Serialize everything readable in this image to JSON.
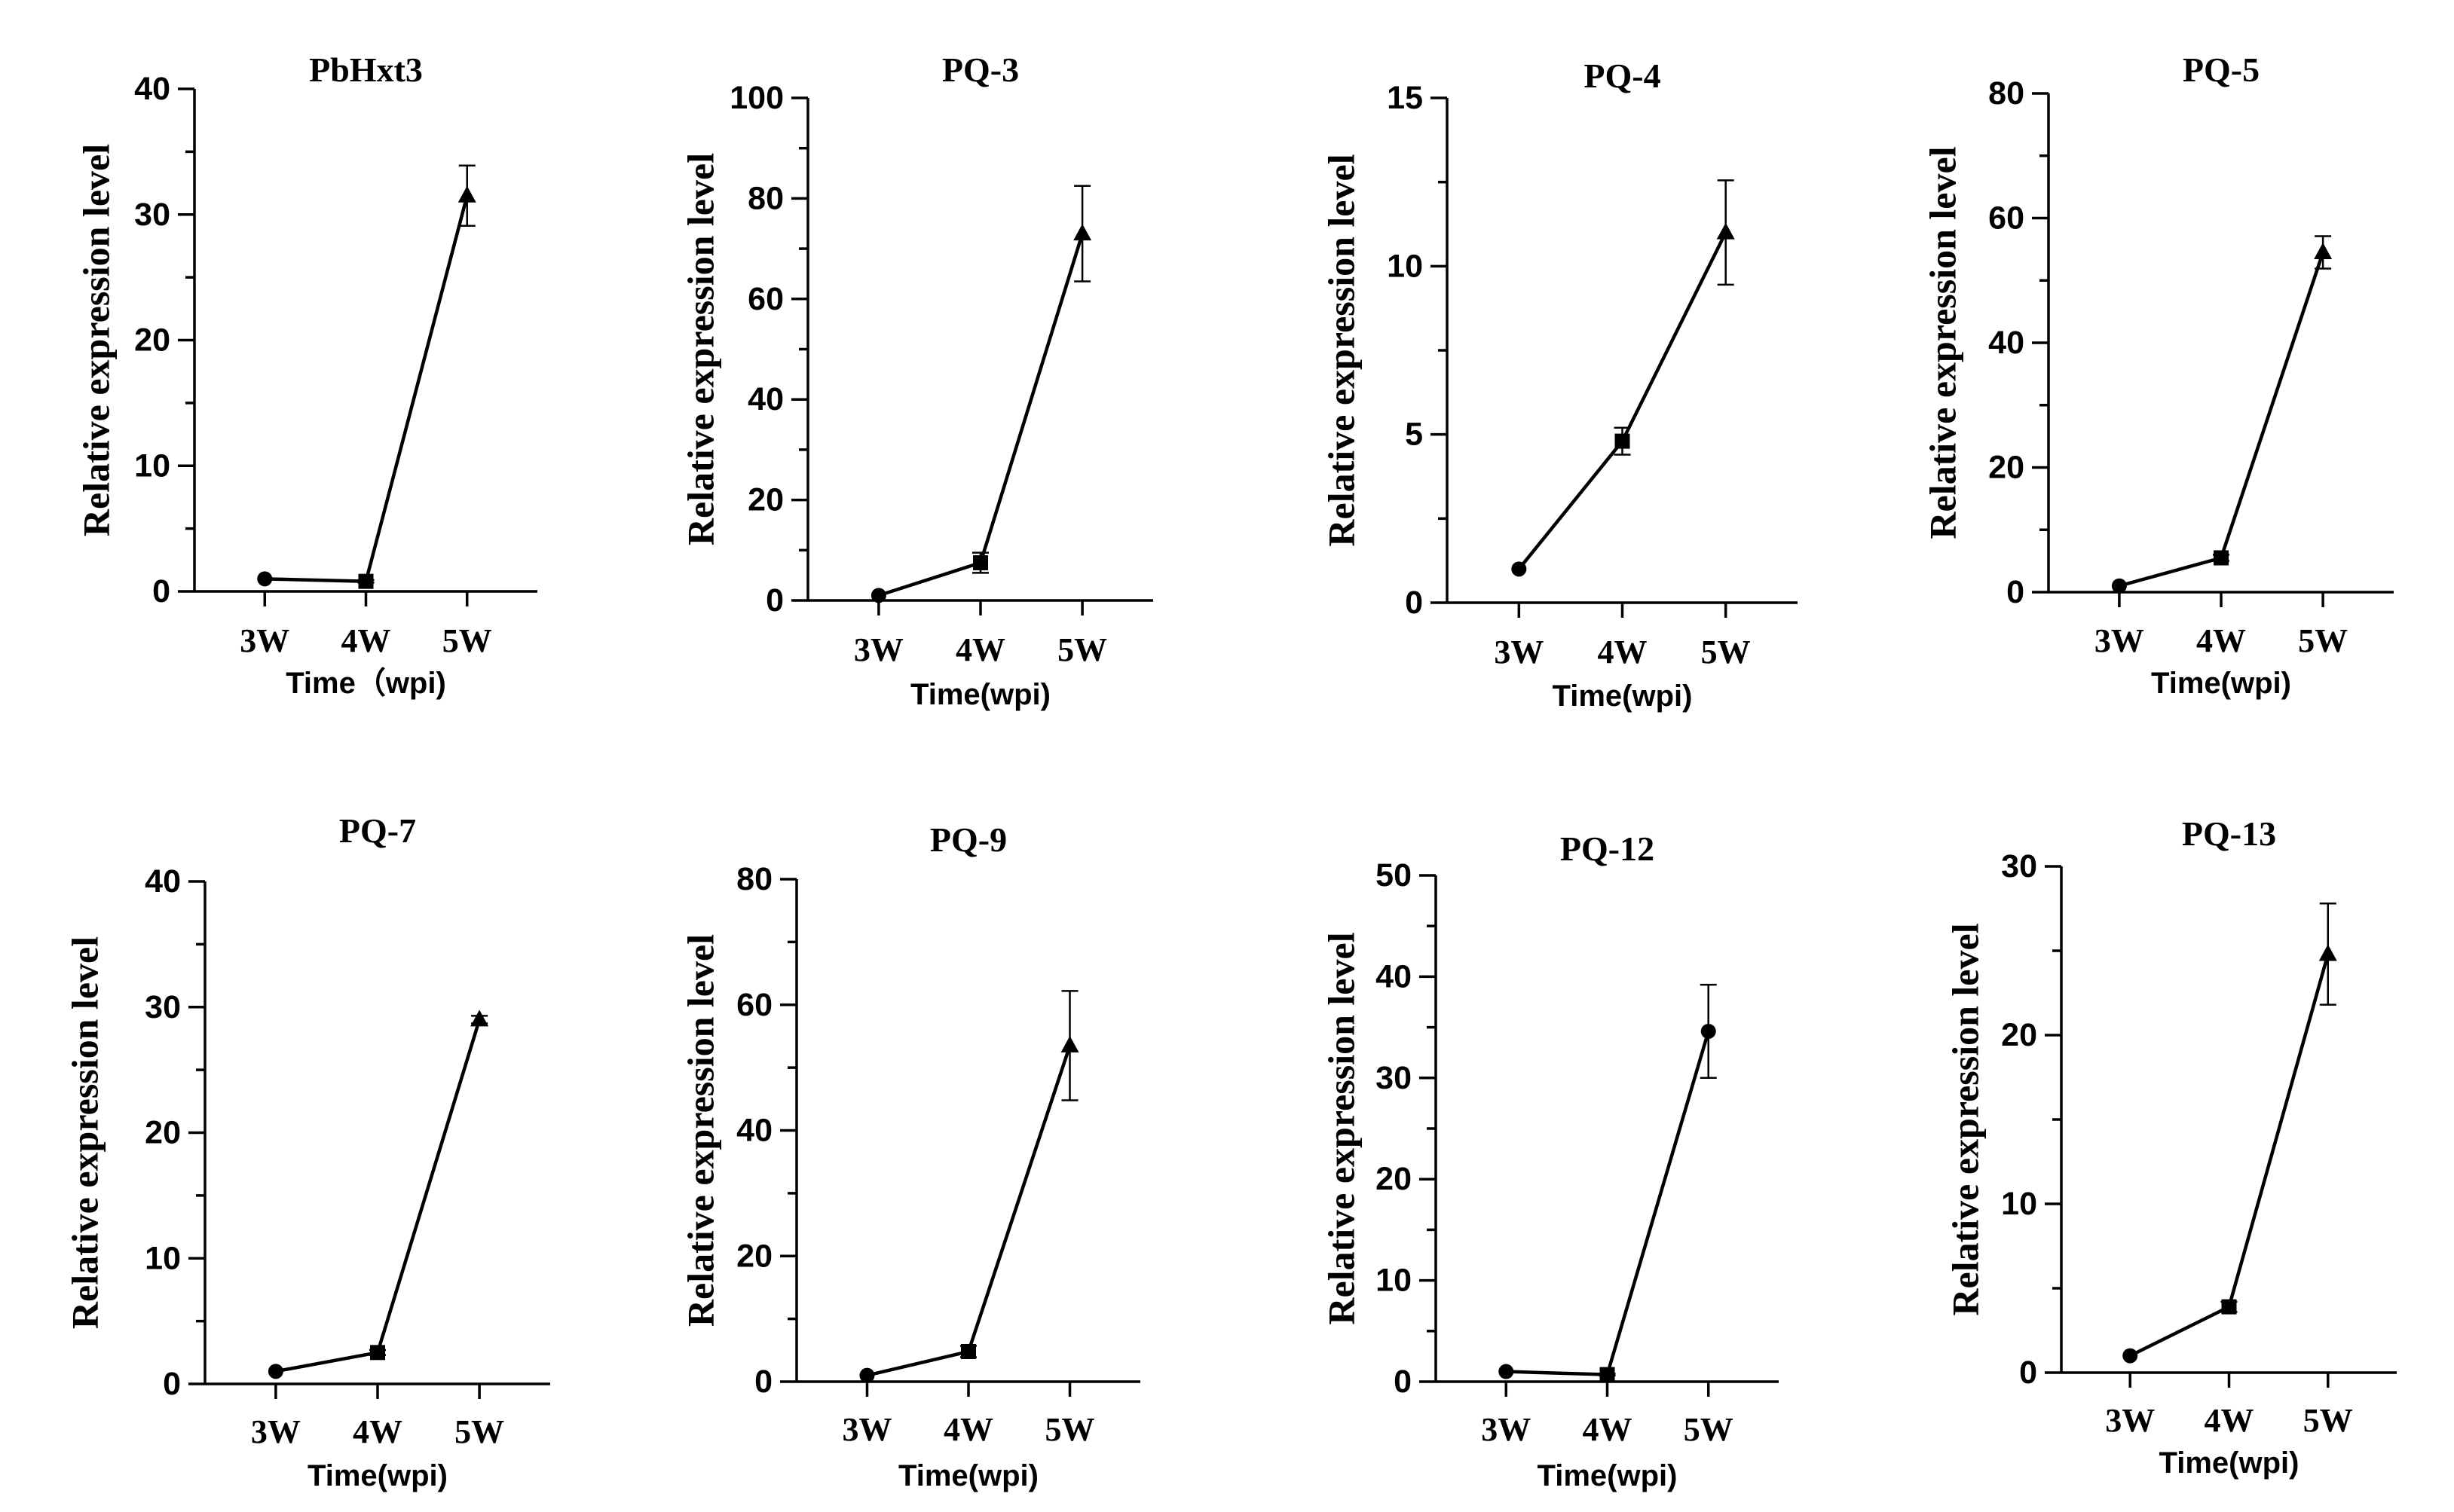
{
  "chart_data": [
    {
      "type": "line",
      "title": "PbHxt3",
      "ylabel": "Relative expression level",
      "xlabel": "Time（wpi)",
      "categories": [
        "3W",
        "4W",
        "5W"
      ],
      "values": [
        1.0,
        0.8,
        31.5
      ],
      "errors": [
        0.0,
        0.1,
        2.4
      ],
      "ylim": [
        0,
        40
      ],
      "yticks": [
        0,
        10,
        20,
        30,
        40
      ],
      "markers": [
        "circle",
        "square",
        "triangle"
      ]
    },
    {
      "type": "line",
      "title": "PQ-3",
      "ylabel": "Relative expression level",
      "xlabel": "Time(wpi)",
      "categories": [
        "3W",
        "4W",
        "5W"
      ],
      "values": [
        1.0,
        7.5,
        73.0
      ],
      "errors": [
        0.0,
        2.0,
        9.5
      ],
      "ylim": [
        0,
        100
      ],
      "yticks": [
        0,
        20,
        40,
        60,
        80,
        100
      ],
      "markers": [
        "circle",
        "square",
        "triangle"
      ]
    },
    {
      "type": "line",
      "title": "PQ-4",
      "ylabel": "Relative expression level",
      "xlabel": "Time(wpi)",
      "categories": [
        "3W",
        "4W",
        "5W"
      ],
      "values": [
        1.0,
        4.8,
        11.0
      ],
      "errors": [
        0.0,
        0.4,
        1.55
      ],
      "ylim": [
        0,
        15
      ],
      "yticks": [
        0,
        5,
        10,
        15
      ],
      "markers": [
        "circle",
        "square",
        "triangle"
      ]
    },
    {
      "type": "line",
      "title": "PQ-5",
      "ylabel": "Relative expression level",
      "xlabel": "Time(wpi)",
      "categories": [
        "3W",
        "4W",
        "5W"
      ],
      "values": [
        1.0,
        5.5,
        54.5
      ],
      "errors": [
        0.0,
        0.5,
        2.6
      ],
      "ylim": [
        0,
        80
      ],
      "yticks": [
        0,
        20,
        40,
        60,
        80
      ],
      "markers": [
        "circle",
        "square",
        "triangle"
      ]
    },
    {
      "type": "line",
      "title": "PQ-7",
      "ylabel": "Relative expression level",
      "xlabel": "Time(wpi)",
      "categories": [
        "3W",
        "4W",
        "5W"
      ],
      "values": [
        1.0,
        2.5,
        29.0
      ],
      "errors": [
        0.0,
        0.2,
        0.3
      ],
      "ylim": [
        0,
        40
      ],
      "yticks": [
        0,
        10,
        20,
        30,
        40
      ],
      "markers": [
        "circle",
        "square",
        "triangle"
      ]
    },
    {
      "type": "line",
      "title": "PQ-9",
      "ylabel": "Relative expression level",
      "xlabel": "Time(wpi)",
      "categories": [
        "3W",
        "4W",
        "5W"
      ],
      "values": [
        1.0,
        4.8,
        53.5
      ],
      "errors": [
        0.0,
        0.9,
        8.7
      ],
      "ylim": [
        0,
        80
      ],
      "yticks": [
        0,
        20,
        40,
        60,
        80
      ],
      "markers": [
        "circle",
        "square",
        "triangle"
      ]
    },
    {
      "type": "line",
      "title": "PQ-12",
      "ylabel": "Relative expression level",
      "xlabel": "Time(wpi)",
      "categories": [
        "3W",
        "4W",
        "5W"
      ],
      "values": [
        1.0,
        0.7,
        34.6
      ],
      "errors": [
        0.0,
        0.1,
        4.6
      ],
      "ylim": [
        0,
        50
      ],
      "yticks": [
        0,
        10,
        20,
        30,
        40,
        50
      ],
      "markers": [
        "circle",
        "square",
        "circle"
      ]
    },
    {
      "type": "line",
      "title": "PQ-13",
      "ylabel": "Relative expression level",
      "xlabel": "Time(wpi)",
      "categories": [
        "3W",
        "4W",
        "5W"
      ],
      "values": [
        1.0,
        3.9,
        24.8
      ],
      "errors": [
        0.0,
        0.3,
        3.0
      ],
      "ylim": [
        0,
        30
      ],
      "yticks": [
        0,
        10,
        20,
        30
      ],
      "markers": [
        "circle",
        "square",
        "triangle"
      ]
    }
  ]
}
